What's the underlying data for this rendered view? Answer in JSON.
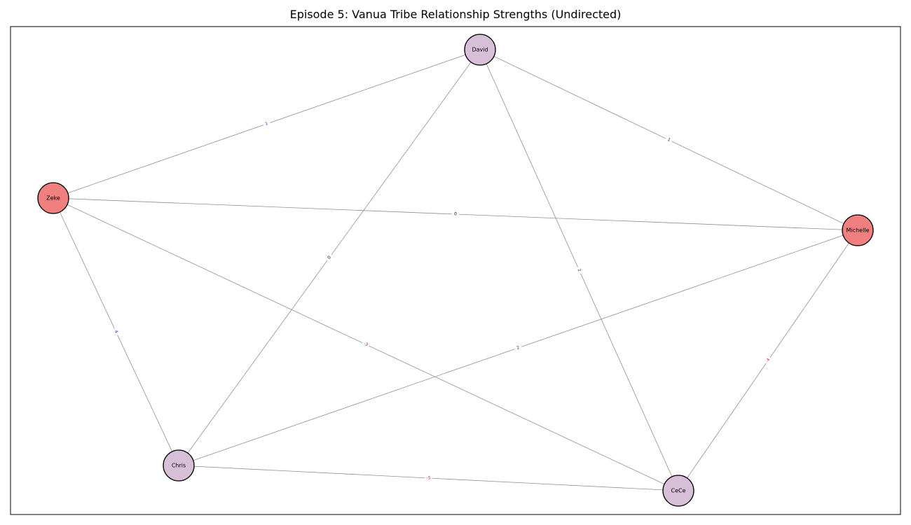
{
  "title": "Episode 5: Vanua Tribe Relationship Strengths (Undirected)",
  "colors": {
    "positive_label": "#1a1acc",
    "negative_label": "#e02020",
    "zero_label": "#000000",
    "edge": "#909090",
    "frame": "#000000"
  },
  "nodes": [
    {
      "id": "David",
      "label": "David",
      "color": "#d8bfd8"
    },
    {
      "id": "Zeke",
      "label": "Zeke",
      "color": "#f08080"
    },
    {
      "id": "Michelle",
      "label": "Michelle",
      "color": "#f08080"
    },
    {
      "id": "Chris",
      "label": "Chris",
      "color": "#d8bfd8"
    },
    {
      "id": "CeCe",
      "label": "CeCe",
      "color": "#d8bfd8"
    }
  ],
  "edges": [
    {
      "source": "Zeke",
      "target": "David",
      "weight": "1"
    },
    {
      "source": "David",
      "target": "Michelle",
      "weight": "1"
    },
    {
      "source": "David",
      "target": "Chris",
      "weight": "0"
    },
    {
      "source": "David",
      "target": "CeCe",
      "weight": "2"
    },
    {
      "source": "Zeke",
      "target": "Michelle",
      "weight": "0"
    },
    {
      "source": "Zeke",
      "target": "Chris",
      "weight": "4"
    },
    {
      "source": "Zeke",
      "target": "CeCe",
      "weight": "-3"
    },
    {
      "source": "Chris",
      "target": "Michelle",
      "weight": "2"
    },
    {
      "source": "Michelle",
      "target": "CeCe",
      "weight": "-4"
    },
    {
      "source": "Chris",
      "target": "CeCe",
      "weight": "-5"
    }
  ]
}
